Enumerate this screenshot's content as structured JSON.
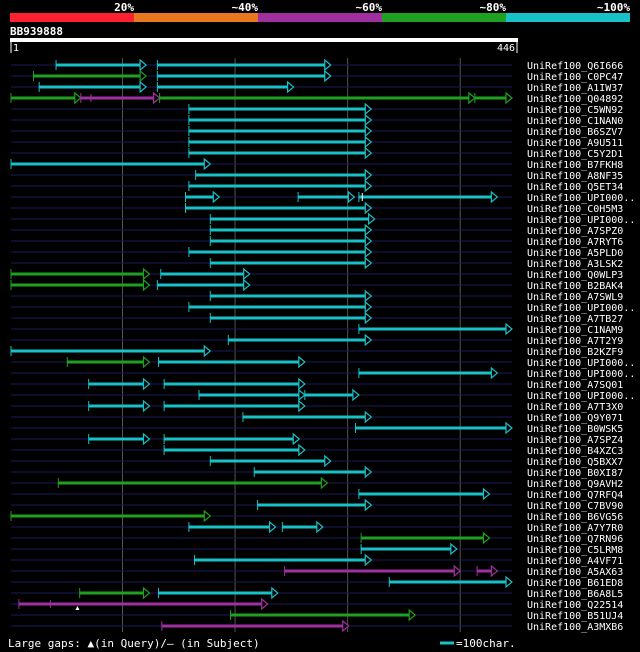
{
  "colors": {
    "background": "#000000",
    "identity_20": "#ff2030",
    "identity_40": "#e87820",
    "identity_60": "#a030a0",
    "identity_80": "#20a020",
    "identity_100": "#18c0c8",
    "grid": "#555555",
    "row_line": "#1a1a5a",
    "text": "#ffffff"
  },
  "legend": {
    "scale_labels": [
      "20%",
      "~40%",
      "~60%",
      "~80%",
      "~100%"
    ]
  },
  "query": {
    "id": "BB939888",
    "start_label": "1",
    "end_label": "446",
    "length": 446
  },
  "footer": {
    "gaps_text": "Large gaps: ▲(in Query)/— (in Subject)",
    "scale_text": "=100char."
  },
  "hits": [
    {
      "name": "UniRef100_Q6I666",
      "segments": [
        {
          "s": 41,
          "e": 121,
          "c": "c"
        },
        {
          "s": 131,
          "e": 285,
          "c": "c"
        }
      ]
    },
    {
      "name": "UniRef100_C0PC47",
      "segments": [
        {
          "s": 21,
          "e": 121,
          "c": "g"
        },
        {
          "s": 131,
          "e": 285,
          "c": "c"
        }
      ]
    },
    {
      "name": "UniRef100_A1IW37",
      "segments": [
        {
          "s": 26,
          "e": 121,
          "c": "c"
        },
        {
          "s": 131,
          "e": 252,
          "c": "c"
        }
      ]
    },
    {
      "name": "UniRef100_Q04892",
      "segments": [
        {
          "s": 1,
          "e": 63,
          "c": "g"
        },
        {
          "s": 63,
          "e": 133,
          "c": "m"
        },
        {
          "s": 133,
          "e": 413,
          "c": "g"
        },
        {
          "s": 413,
          "e": 446,
          "c": "g"
        }
      ],
      "ticks": [
        {
          "p": 72,
          "c": "m"
        }
      ]
    },
    {
      "name": "UniRef100_C5WN92",
      "segments": [
        {
          "s": 159,
          "e": 321,
          "c": "c"
        }
      ]
    },
    {
      "name": "UniRef100_C1NAN0",
      "segments": [
        {
          "s": 159,
          "e": 321,
          "c": "c"
        }
      ]
    },
    {
      "name": "UniRef100_B6SZV7",
      "segments": [
        {
          "s": 159,
          "e": 321,
          "c": "c"
        }
      ]
    },
    {
      "name": "UniRef100_A9U511",
      "segments": [
        {
          "s": 159,
          "e": 321,
          "c": "c"
        }
      ]
    },
    {
      "name": "UniRef100_C5Y2D1",
      "segments": [
        {
          "s": 159,
          "e": 321,
          "c": "c"
        }
      ]
    },
    {
      "name": "UniRef100_B7FKH8",
      "segments": [
        {
          "s": 1,
          "e": 178,
          "c": "c"
        }
      ]
    },
    {
      "name": "UniRef100_A8NF35",
      "segments": [
        {
          "s": 165,
          "e": 321,
          "c": "c"
        }
      ]
    },
    {
      "name": "UniRef100_Q5ET34",
      "segments": [
        {
          "s": 159,
          "e": 321,
          "c": "c"
        }
      ]
    },
    {
      "name": "UniRef100_UPI000..",
      "segments": [
        {
          "s": 156,
          "e": 186,
          "c": "c"
        },
        {
          "s": 256,
          "e": 306,
          "c": "c"
        },
        {
          "s": 310,
          "e": 433,
          "c": "c"
        }
      ],
      "ticks": [
        {
          "p": 313,
          "c": "w"
        }
      ]
    },
    {
      "name": "UniRef100_C0H5M3",
      "segments": [
        {
          "s": 156,
          "e": 321,
          "c": "c"
        }
      ]
    },
    {
      "name": "UniRef100_UPI000..",
      "segments": [
        {
          "s": 178,
          "e": 324,
          "c": "c"
        }
      ]
    },
    {
      "name": "UniRef100_A7SPZ0",
      "segments": [
        {
          "s": 178,
          "e": 321,
          "c": "c"
        }
      ]
    },
    {
      "name": "UniRef100_A7RYT6",
      "segments": [
        {
          "s": 178,
          "e": 321,
          "c": "c"
        }
      ]
    },
    {
      "name": "UniRef100_A5PLD0",
      "segments": [
        {
          "s": 159,
          "e": 321,
          "c": "c"
        }
      ]
    },
    {
      "name": "UniRef100_A3LSK2",
      "segments": [
        {
          "s": 178,
          "e": 321,
          "c": "c"
        }
      ]
    },
    {
      "name": "UniRef100_Q0WLP3",
      "segments": [
        {
          "s": 1,
          "e": 124,
          "c": "g"
        },
        {
          "s": 134,
          "e": 213,
          "c": "c"
        }
      ]
    },
    {
      "name": "UniRef100_B2BAK4",
      "segments": [
        {
          "s": 1,
          "e": 124,
          "c": "g"
        },
        {
          "s": 131,
          "e": 213,
          "c": "c"
        }
      ]
    },
    {
      "name": "UniRef100_A7SWL9",
      "segments": [
        {
          "s": 178,
          "e": 321,
          "c": "c"
        }
      ]
    },
    {
      "name": "UniRef100_UPI000..",
      "segments": [
        {
          "s": 159,
          "e": 321,
          "c": "c"
        }
      ]
    },
    {
      "name": "UniRef100_A7TB27",
      "segments": [
        {
          "s": 178,
          "e": 321,
          "c": "c"
        }
      ]
    },
    {
      "name": "UniRef100_C1NAM9",
      "segments": [
        {
          "s": 310,
          "e": 446,
          "c": "c"
        }
      ]
    },
    {
      "name": "UniRef100_A7T2Y9",
      "segments": [
        {
          "s": 194,
          "e": 321,
          "c": "c"
        }
      ]
    },
    {
      "name": "UniRef100_B2KZF9",
      "segments": [
        {
          "s": 1,
          "e": 178,
          "c": "c"
        }
      ]
    },
    {
      "name": "UniRef100_UPI000..",
      "segments": [
        {
          "s": 51,
          "e": 124,
          "c": "g"
        },
        {
          "s": 132,
          "e": 262,
          "c": "c"
        }
      ]
    },
    {
      "name": "UniRef100_UPI000..",
      "segments": [
        {
          "s": 310,
          "e": 433,
          "c": "c"
        }
      ]
    },
    {
      "name": "UniRef100_A7SQ01",
      "segments": [
        {
          "s": 70,
          "e": 124,
          "c": "c"
        },
        {
          "s": 137,
          "e": 262,
          "c": "c"
        }
      ]
    },
    {
      "name": "UniRef100_UPI000..",
      "segments": [
        {
          "s": 168,
          "e": 262,
          "c": "c"
        },
        {
          "s": 262,
          "e": 310,
          "c": "c"
        }
      ]
    },
    {
      "name": "UniRef100_A7T3X0",
      "segments": [
        {
          "s": 70,
          "e": 124,
          "c": "c"
        },
        {
          "s": 137,
          "e": 262,
          "c": "c"
        }
      ]
    },
    {
      "name": "UniRef100_Q9Y071",
      "segments": [
        {
          "s": 207,
          "e": 321,
          "c": "c"
        }
      ]
    },
    {
      "name": "UniRef100_B0WSK5",
      "segments": [
        {
          "s": 307,
          "e": 446,
          "c": "c"
        }
      ]
    },
    {
      "name": "UniRef100_A7SPZ4",
      "segments": [
        {
          "s": 70,
          "e": 124,
          "c": "c"
        },
        {
          "s": 137,
          "e": 257,
          "c": "c"
        }
      ]
    },
    {
      "name": "UniRef100_B4XZC3",
      "segments": [
        {
          "s": 137,
          "e": 262,
          "c": "c"
        }
      ]
    },
    {
      "name": "UniRef100_Q5BXX7",
      "segments": [
        {
          "s": 178,
          "e": 285,
          "c": "c"
        }
      ]
    },
    {
      "name": "UniRef100_B0XI87",
      "segments": [
        {
          "s": 217,
          "e": 321,
          "c": "c"
        }
      ]
    },
    {
      "name": "UniRef100_Q9AVH2",
      "segments": [
        {
          "s": 43,
          "e": 282,
          "c": "g"
        }
      ]
    },
    {
      "name": "UniRef100_Q7RFQ4",
      "segments": [
        {
          "s": 310,
          "e": 426,
          "c": "c"
        }
      ]
    },
    {
      "name": "UniRef100_C7BV90",
      "segments": [
        {
          "s": 220,
          "e": 321,
          "c": "c"
        }
      ]
    },
    {
      "name": "UniRef100_B6VG56",
      "segments": [
        {
          "s": 1,
          "e": 178,
          "c": "g"
        }
      ]
    },
    {
      "name": "UniRef100_A7Y7R0",
      "segments": [
        {
          "s": 159,
          "e": 236,
          "c": "c"
        },
        {
          "s": 242,
          "e": 278,
          "c": "c"
        }
      ]
    },
    {
      "name": "UniRef100_Q7RN96",
      "segments": [
        {
          "s": 312,
          "e": 426,
          "c": "g"
        }
      ]
    },
    {
      "name": "UniRef100_C5LRM8",
      "segments": [
        {
          "s": 312,
          "e": 397,
          "c": "c"
        }
      ]
    },
    {
      "name": "UniRef100_A4VF71",
      "segments": [
        {
          "s": 164,
          "e": 321,
          "c": "c"
        }
      ]
    },
    {
      "name": "UniRef100_A5AX63",
      "segments": [
        {
          "s": 244,
          "e": 400,
          "c": "m"
        },
        {
          "s": 415,
          "e": 433,
          "c": "m"
        }
      ]
    },
    {
      "name": "UniRef100_B61ED8",
      "segments": [
        {
          "s": 337,
          "e": 446,
          "c": "c"
        }
      ]
    },
    {
      "name": "UniRef100_B6A8L5",
      "segments": [
        {
          "s": 62,
          "e": 124,
          "c": "g"
        },
        {
          "s": 132,
          "e": 238,
          "c": "c"
        }
      ]
    },
    {
      "name": "UniRef100_Q22514",
      "segments": [
        {
          "s": 8,
          "e": 229,
          "c": "m"
        }
      ],
      "ticks": [
        {
          "p": 36,
          "c": "m"
        }
      ],
      "triangles": [
        60
      ]
    },
    {
      "name": "UniRef100_B51UJ4",
      "segments": [
        {
          "s": 196,
          "e": 360,
          "c": "g"
        }
      ]
    },
    {
      "name": "UniRef100_A3MXB6",
      "segments": [
        {
          "s": 135,
          "e": 301,
          "c": "m"
        }
      ]
    }
  ]
}
